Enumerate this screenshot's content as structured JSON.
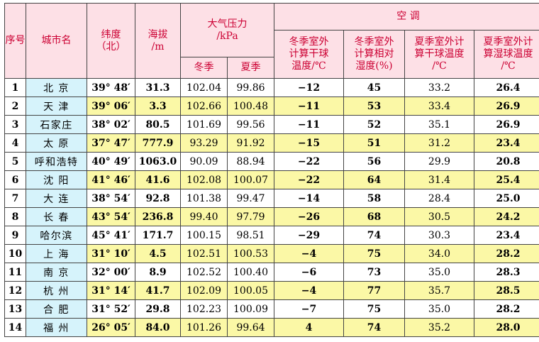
{
  "headers": {
    "index": "序号",
    "city": "城市名",
    "latitude_line1": "纬度",
    "latitude_line2": "（北）",
    "altitude_line1": "海拔",
    "altitude_line2": "/m",
    "pressure_line1": "大气压力",
    "pressure_line2": "/kPa",
    "winter": "冬季",
    "summer": "夏季",
    "ac": "空 调",
    "ac_winter_dry_line1": "冬季室外",
    "ac_winter_dry_line2": "计算干球",
    "ac_winter_dry_line3": "温度/℃",
    "ac_winter_rh_line1": "冬季室外",
    "ac_winter_rh_line2": "计算相对",
    "ac_winter_rh_line3": "湿度(%)",
    "ac_summer_dry_line1": "夏季室外计",
    "ac_summer_dry_line2": "算干球温度",
    "ac_summer_dry_line3": "/℃",
    "ac_summer_wet_line1": "夏季室外计",
    "ac_summer_wet_line2": "算湿球温度",
    "ac_summer_wet_line3": "/℃"
  },
  "rows": [
    {
      "idx": "1",
      "city": "北 京",
      "lat": "39° 48′",
      "alt": "31.3",
      "pw": "102.04",
      "ps": "99.86",
      "wd": "−12",
      "wrh": "45",
      "sd": "33.2",
      "sw": "26.4"
    },
    {
      "idx": "2",
      "city": "天 津",
      "lat": "39° 06′",
      "alt": "3.3",
      "pw": "102.66",
      "ps": "100.48",
      "wd": "−11",
      "wrh": "53",
      "sd": "33.4",
      "sw": "26.9"
    },
    {
      "idx": "3",
      "city": "石家庄",
      "lat": "38° 02′",
      "alt": "80.5",
      "pw": "101.69",
      "ps": "99.56",
      "wd": "−11",
      "wrh": "52",
      "sd": "35.1",
      "sw": "26.9"
    },
    {
      "idx": "4",
      "city": "太 原",
      "lat": "37° 47′",
      "alt": "777.9",
      "pw": "93.29",
      "ps": "91.92",
      "wd": "−15",
      "wrh": "51",
      "sd": "31.2",
      "sw": "23.4"
    },
    {
      "idx": "5",
      "city": "呼和浩特",
      "lat": "40° 49′",
      "alt": "1063.0",
      "pw": "90.09",
      "ps": "88.94",
      "wd": "−22",
      "wrh": "56",
      "sd": "29.9",
      "sw": "20.8"
    },
    {
      "idx": "6",
      "city": "沈 阳",
      "lat": "41° 46′",
      "alt": "41.6",
      "pw": "102.08",
      "ps": "100.07",
      "wd": "−22",
      "wrh": "64",
      "sd": "31.4",
      "sw": "25.4"
    },
    {
      "idx": "7",
      "city": "大 连",
      "lat": "38° 54′",
      "alt": "92.8",
      "pw": "101.38",
      "ps": "99.47",
      "wd": "−14",
      "wrh": "58",
      "sd": "28.4",
      "sw": "25.0"
    },
    {
      "idx": "8",
      "city": "长 春",
      "lat": "43° 54′",
      "alt": "236.8",
      "pw": "99.40",
      "ps": "97.79",
      "wd": "−26",
      "wrh": "68",
      "sd": "30.5",
      "sw": "24.2"
    },
    {
      "idx": "9",
      "city": "哈尔滨",
      "lat": "45° 41′",
      "alt": "171.7",
      "pw": "100.15",
      "ps": "98.51",
      "wd": "−29",
      "wrh": "74",
      "sd": "30.3",
      "sw": "23.4"
    },
    {
      "idx": "10",
      "city": "上 海",
      "lat": "31° 10′",
      "alt": "4.5",
      "pw": "102.51",
      "ps": "100.53",
      "wd": "−4",
      "wrh": "75",
      "sd": "34.0",
      "sw": "28.2"
    },
    {
      "idx": "11",
      "city": "南 京",
      "lat": "32° 00′",
      "alt": "8.9",
      "pw": "102.52",
      "ps": "100.40",
      "wd": "−6",
      "wrh": "73",
      "sd": "35.0",
      "sw": "28.3"
    },
    {
      "idx": "12",
      "city": "杭 州",
      "lat": "31° 14′",
      "alt": "41.7",
      "pw": "102.09",
      "ps": "100.05",
      "wd": "−4",
      "wrh": "77",
      "sd": "35.7",
      "sw": "28.5"
    },
    {
      "idx": "13",
      "city": "合 肥",
      "lat": "31° 52′",
      "alt": "29.8",
      "pw": "102.23",
      "ps": "100.09",
      "wd": "−7",
      "wrh": "75",
      "sd": "35.0",
      "sw": "28.2"
    },
    {
      "idx": "14",
      "city": "福 州",
      "lat": "26° 05′",
      "alt": "84.0",
      "pw": "101.26",
      "ps": "99.64",
      "wd": "4",
      "wrh": "74",
      "sd": "35.2",
      "sw": "28.0"
    }
  ],
  "colors": {
    "header_bg": "#fde0e6",
    "header_text": "#cc0033",
    "city_bg": "#d6f3fb",
    "alt_row_bg": "#fbf8a6"
  }
}
